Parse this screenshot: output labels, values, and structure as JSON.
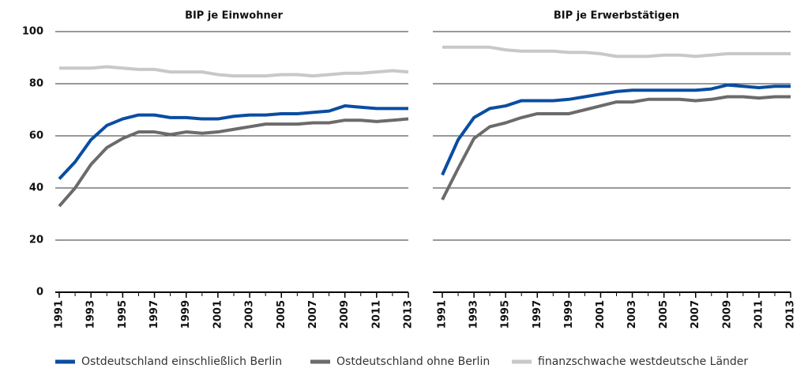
{
  "chart_data": [
    {
      "type": "line",
      "title": "BIP je Einwohner",
      "x": [
        1991,
        1992,
        1993,
        1994,
        1995,
        1996,
        1997,
        1998,
        1999,
        2000,
        2001,
        2002,
        2003,
        2004,
        2005,
        2006,
        2007,
        2008,
        2009,
        2010,
        2011,
        2012,
        2013
      ],
      "xlim": [
        1991,
        2013
      ],
      "xticks": [
        1991,
        1993,
        1995,
        1997,
        1999,
        2001,
        2003,
        2005,
        2007,
        2009,
        2011,
        2013
      ],
      "ylim": [
        0,
        100
      ],
      "yticks": [
        0,
        20,
        40,
        60,
        80,
        100
      ],
      "grid": true,
      "series": [
        {
          "name": "Ostdeutschland einschließlich Berlin",
          "color": "#0a4da2",
          "values": [
            43.5,
            50,
            58.5,
            64,
            66.5,
            68,
            68,
            67,
            67,
            66.5,
            66.5,
            67.5,
            68,
            68,
            68.5,
            68.5,
            69,
            69.5,
            71.5,
            71,
            70.5,
            70.5,
            70.5
          ]
        },
        {
          "name": "Ostdeutschland ohne Berlin",
          "color": "#6b6b6b",
          "values": [
            33,
            40,
            49,
            55.5,
            59,
            61.5,
            61.5,
            60.5,
            61.5,
            61,
            61.5,
            62.5,
            63.5,
            64.5,
            64.5,
            64.5,
            65,
            65,
            66,
            66,
            65.5,
            66,
            66.5
          ]
        },
        {
          "name": "finanzschwache westdeutsche Länder",
          "color": "#c8c8c8",
          "values": [
            86,
            86,
            86,
            86.5,
            86,
            85.5,
            85.5,
            84.5,
            84.5,
            84.5,
            83.5,
            83,
            83,
            83,
            83.5,
            83.5,
            83,
            83.5,
            84,
            84,
            84.5,
            85,
            84.5
          ]
        }
      ]
    },
    {
      "type": "line",
      "title": "BIP je Erwerbstätigen",
      "x": [
        1991,
        1992,
        1993,
        1994,
        1995,
        1996,
        1997,
        1998,
        1999,
        2000,
        2001,
        2002,
        2003,
        2004,
        2005,
        2006,
        2007,
        2008,
        2009,
        2010,
        2011,
        2012,
        2013
      ],
      "xlim": [
        1991,
        2013
      ],
      "xticks": [
        1991,
        1993,
        1995,
        1997,
        1999,
        2001,
        2003,
        2005,
        2007,
        2009,
        2011,
        2013
      ],
      "ylim": [
        0,
        100
      ],
      "yticks": [
        0,
        20,
        40,
        60,
        80,
        100
      ],
      "grid": true,
      "ytick_labels": false,
      "series": [
        {
          "color": "#0a4da2",
          "values": [
            45,
            58.5,
            67,
            70.5,
            71.5,
            73.5,
            73.5,
            73.5,
            74,
            75,
            76,
            77,
            77.5,
            77.5,
            77.5,
            77.5,
            77.5,
            78,
            79.5,
            79,
            78.5,
            79,
            79
          ]
        },
        {
          "color": "#6b6b6b",
          "values": [
            35.5,
            47.5,
            59,
            63.5,
            65,
            67,
            68.5,
            68.5,
            68.5,
            70,
            71.5,
            73,
            73,
            74,
            74,
            74,
            73.5,
            74,
            75,
            75,
            74.5,
            75,
            75
          ]
        },
        {
          "color": "#c8c8c8",
          "values": [
            94,
            94,
            94,
            94,
            93,
            92.5,
            92.5,
            92.5,
            92,
            92,
            91.5,
            90.5,
            90.5,
            90.5,
            91,
            91,
            90.5,
            91,
            91.5,
            91.5,
            91.5,
            91.5,
            91.5
          ]
        }
      ]
    }
  ]
}
